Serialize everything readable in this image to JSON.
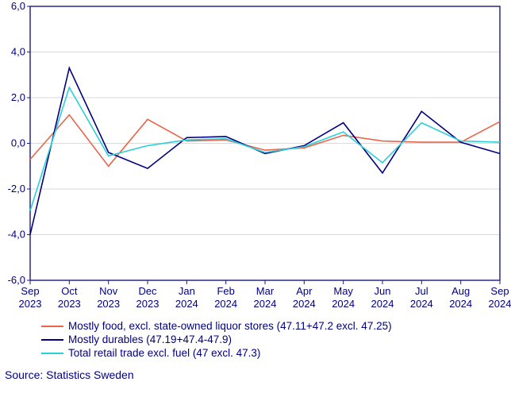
{
  "chart": {
    "type": "line",
    "background_color": "#ffffff",
    "plot_border_color": "#1b1b80",
    "plot_border_width": 1.4,
    "grid_color": "#d9d9d9",
    "axis_text_color": "#000080",
    "ylim": [
      -6,
      6
    ],
    "ytick_step": 2,
    "yticks": [
      "-6,0",
      "-4,0",
      "-2,0",
      "0,0",
      "2,0",
      "4,0",
      "6,0"
    ],
    "yticks_num": [
      -6,
      -4,
      -2,
      0,
      2,
      4,
      6
    ],
    "x_categories": [
      "Sep 2023",
      "Oct 2023",
      "Nov 2023",
      "Dec 2023",
      "Jan 2024",
      "Feb 2024",
      "Mar 2024",
      "Apr 2024",
      "May 2024",
      "Jun 2024",
      "Jul 2024",
      "Aug 2024",
      "Sep 2024"
    ],
    "x_labels_top": [
      "Sep",
      "Oct",
      "Nov",
      "Dec",
      "Jan",
      "Feb",
      "Mar",
      "Apr",
      "May",
      "Jun",
      "Jul",
      "Aug",
      "Sep"
    ],
    "x_labels_bottom": [
      "2023",
      "2023",
      "2023",
      "2023",
      "2024",
      "2024",
      "2024",
      "2024",
      "2024",
      "2024",
      "2024",
      "2024",
      "2024"
    ],
    "series": [
      {
        "name": "Mostly food, excl. state-owned liquor stores (47.11+47.2 excl. 47.25)",
        "color": "#e8664a",
        "width": 1.6,
        "values": [
          -0.7,
          1.25,
          -1.0,
          1.05,
          0.1,
          0.15,
          -0.3,
          -0.2,
          0.35,
          0.1,
          0.05,
          0.05,
          0.95
        ]
      },
      {
        "name": "Mostly durables (47.19+47.4-47.9)",
        "color": "#000080",
        "width": 1.6,
        "values": [
          -4.0,
          3.3,
          -0.4,
          -1.1,
          0.25,
          0.3,
          -0.45,
          -0.1,
          0.9,
          -1.3,
          1.4,
          0.05,
          -0.45
        ]
      },
      {
        "name": "Total retail trade excl. fuel (47 excl. 47.3)",
        "color": "#2bd0d8",
        "width": 1.6,
        "values": [
          -2.95,
          2.45,
          -0.55,
          -0.1,
          0.15,
          0.2,
          -0.4,
          -0.15,
          0.5,
          -0.85,
          0.9,
          0.1,
          0.05
        ]
      }
    ]
  },
  "source": "Source: Statistics Sweden"
}
